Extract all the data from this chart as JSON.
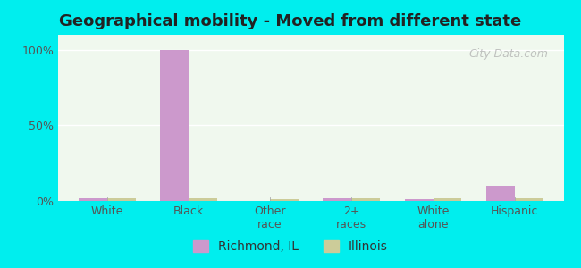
{
  "title": "Geographical mobility - Moved from different state",
  "categories": [
    "White",
    "Black",
    "Other\nrace",
    "2+\nraces",
    "White\nalone",
    "Hispanic"
  ],
  "richmond_values": [
    1.5,
    100.0,
    0.0,
    1.5,
    1.0,
    10.0
  ],
  "illinois_values": [
    2.0,
    1.5,
    1.0,
    2.0,
    2.0,
    1.5
  ],
  "richmond_color": "#cc99cc",
  "illinois_color": "#cccc99",
  "background_color_top": "#aaffff",
  "plot_bg_top": "#eeffee",
  "plot_bg_bottom": "#eeffee",
  "ylabel_ticks": [
    "0%",
    "50%",
    "100%"
  ],
  "ytick_vals": [
    0,
    50,
    100
  ],
  "bar_width": 0.35,
  "legend_richmond": "Richmond, IL",
  "legend_illinois": "Illinois",
  "watermark": "City-Data.com"
}
